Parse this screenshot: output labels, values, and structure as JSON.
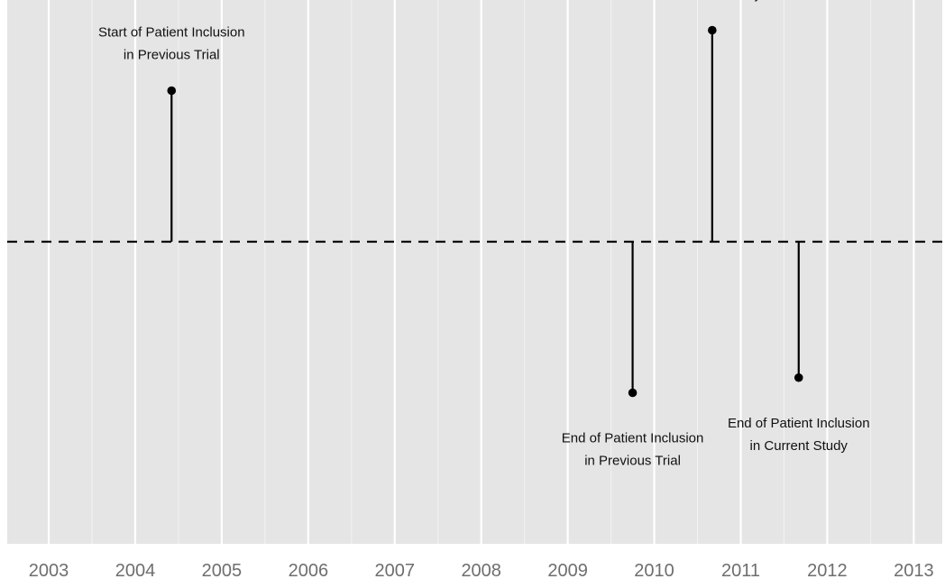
{
  "chart_data": {
    "type": "timeline",
    "title": "",
    "xlabel": "",
    "ylabel": "",
    "x_ticks": [
      "2003",
      "2004",
      "2005",
      "2006",
      "2007",
      "2008",
      "2009",
      "2010",
      "2011",
      "2012",
      "2013"
    ],
    "xlim": [
      2002.52,
      2013.33
    ],
    "ylim": [
      -2.0,
      1.6
    ],
    "grid": true,
    "baseline": {
      "value": 0,
      "style": "dashed"
    },
    "events": [
      {
        "x": 2004.42,
        "y": 1.0,
        "label": [
          "Start of Patient Inclusion",
          "in Previous Trial"
        ]
      },
      {
        "x": 2009.75,
        "y": -1.0,
        "label": [
          "End of Patient Inclusion",
          "in Previous Trial"
        ]
      },
      {
        "x": 2010.67,
        "y": 1.4,
        "label": [
          "Start of Patient Inclusion",
          "in Current Study"
        ]
      },
      {
        "x": 2011.67,
        "y": -0.9,
        "label": [
          "End of Patient Inclusion",
          "in Current Study"
        ]
      }
    ]
  }
}
